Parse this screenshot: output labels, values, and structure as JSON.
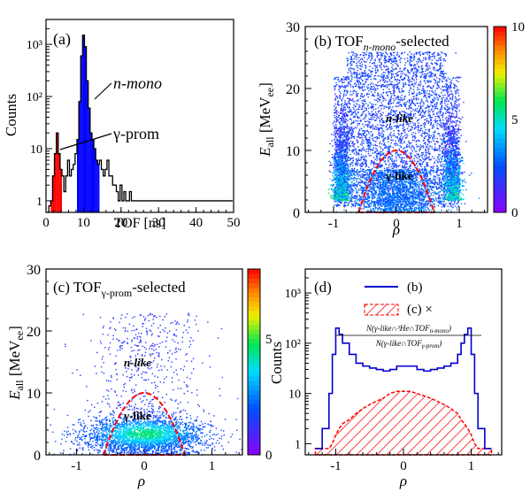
{
  "chart_data": [
    {
      "id": "a",
      "type": "histogram",
      "panel_label": "(a)",
      "xlabel": "TOF [ns]",
      "ylabel": "Counts",
      "xlim": [
        0,
        50
      ],
      "ylim": [
        0.6,
        3000
      ],
      "yscale": "log",
      "xticks": [
        "0",
        "10",
        "20",
        "30",
        "40",
        "50"
      ],
      "yticks": [
        "1",
        "10",
        "10²",
        "10³"
      ],
      "annotations": {
        "n_mono": "n-mono",
        "gamma_prom": "γ-prom"
      },
      "colors": {
        "outline": "#000000",
        "gamma_fill": "#ff0000",
        "nmono_fill": "#0000ff"
      },
      "bin_width": 0.5,
      "bins_x": [
        0.5,
        1,
        1.5,
        2,
        2.5,
        3,
        3.5,
        4,
        4.5,
        5,
        5.5,
        6,
        6.5,
        7,
        7.5,
        8,
        8.5,
        9,
        9.5,
        10,
        10.5,
        11,
        11.5,
        12,
        12.5,
        13,
        13.5,
        14,
        14.5,
        15,
        15.5,
        16,
        16.5,
        17,
        17.5,
        18,
        18.5,
        19,
        19.5,
        20,
        20.5,
        21,
        21.5,
        22,
        22.5,
        23,
        23.5,
        24,
        24.5,
        25,
        25.5,
        26,
        26.5,
        27,
        27.5,
        28,
        28.5,
        29,
        29.5,
        30,
        30.5,
        31,
        31.5,
        32,
        32.5,
        33,
        33.5,
        34,
        34.5,
        35,
        35.5,
        36,
        36.5,
        37,
        37.5,
        38,
        38.5,
        39,
        39.5,
        40,
        40.5,
        41,
        41.5,
        42,
        42.5,
        43,
        43.5,
        44,
        44.5,
        45,
        45.5,
        46,
        46.5,
        47,
        47.5,
        48,
        48.5,
        49,
        49.5
      ],
      "bins_y": [
        0.6,
        0.8,
        1,
        3,
        8,
        20,
        8,
        4,
        3,
        1.5,
        3,
        6,
        3,
        4,
        5,
        8,
        15,
        80,
        600,
        1500,
        900,
        200,
        60,
        20,
        15,
        10,
        6,
        5,
        6,
        4,
        3,
        4,
        6,
        3,
        3,
        2,
        2,
        1.5,
        1,
        2,
        1,
        1.5,
        1,
        1,
        1.5,
        1,
        1,
        1,
        1,
        1,
        1,
        1,
        1,
        1,
        1,
        1,
        1,
        1,
        1,
        1,
        1,
        1,
        1,
        1,
        1,
        1,
        1,
        1,
        1,
        1,
        1,
        1,
        1,
        1,
        1,
        1,
        1,
        1,
        1,
        1,
        1,
        1,
        1,
        1,
        1,
        1,
        1,
        1,
        1,
        1,
        1,
        1,
        1,
        1,
        1,
        1,
        1,
        1,
        1
      ],
      "gamma_range": [
        1.5,
        4
      ],
      "nmono_range": [
        8.5,
        14
      ]
    },
    {
      "id": "b",
      "type": "heatmap",
      "panel_label": "(b) TOF",
      "panel_label_sub": "n-mono",
      "panel_label_suffix": "-selected",
      "xlabel": "ρ",
      "ylabel_main": "E",
      "ylabel_sub": "all",
      "ylabel_unit": " [MeV",
      "ylabel_unit_sub": "ee",
      "ylabel_close": "]",
      "xlim": [
        -1.45,
        1.45
      ],
      "ylim": [
        0,
        30
      ],
      "xticks": [
        "-1",
        "0",
        "1"
      ],
      "yticks": [
        "0",
        "10",
        "20",
        "30"
      ],
      "colorbar_ticks": [
        "0",
        "5",
        "10"
      ],
      "colorbar_range": [
        0,
        10
      ],
      "labels": {
        "n_like": "n-like",
        "gamma_like": "γ-like"
      },
      "cut_color": "#ff0000"
    },
    {
      "id": "c",
      "type": "heatmap",
      "panel_label": "(c) TOF",
      "panel_label_sub": "γ-prom",
      "panel_label_suffix": "-selected",
      "xlabel": "ρ",
      "ylabel_main": "E",
      "ylabel_sub": "all",
      "ylabel_unit": " [MeV",
      "ylabel_unit_sub": "ee",
      "ylabel_close": "]",
      "xlim": [
        -1.45,
        1.45
      ],
      "ylim": [
        0,
        30
      ],
      "xticks": [
        "-1",
        "0",
        "1"
      ],
      "yticks": [
        "0",
        "10",
        "20",
        "30"
      ],
      "colorbar_ticks": [
        "0",
        "5"
      ],
      "colorbar_range": [
        0,
        8
      ],
      "labels": {
        "n_like": "n-like",
        "gamma_like": "γ-like"
      },
      "cut_color": "#ff0000"
    },
    {
      "id": "d",
      "type": "histogram",
      "panel_label": "(d)",
      "xlabel": "ρ",
      "ylabel": "Counts",
      "xlim": [
        -1.45,
        1.45
      ],
      "ylim": [
        0.6,
        3000
      ],
      "yscale": "log",
      "xticks": [
        "-1",
        "0",
        "1"
      ],
      "yticks": [
        "1",
        "10",
        "10²",
        "10³"
      ],
      "legend": {
        "b": "(b)",
        "c": "(c)  ×"
      },
      "fraction_num": "N(γ-like∩³He∩TOF",
      "fraction_num_sub": "n-mono",
      "fraction_den": "N(γ-like∩TOF",
      "fraction_den_sub": "γ-prom",
      "colors": {
        "b": "#0000cc",
        "c": "#ff0000"
      },
      "x": [
        -1.3,
        -1.2,
        -1.1,
        -1.05,
        -1.0,
        -0.95,
        -0.9,
        -0.8,
        -0.7,
        -0.6,
        -0.5,
        -0.4,
        -0.3,
        -0.2,
        -0.1,
        0,
        0.1,
        0.2,
        0.3,
        0.4,
        0.5,
        0.6,
        0.7,
        0.8,
        0.85,
        0.9,
        0.95,
        1.0,
        1.05,
        1.1,
        1.2,
        1.3
      ],
      "b_values": [
        0.8,
        2,
        10,
        60,
        200,
        150,
        100,
        60,
        40,
        35,
        32,
        30,
        28,
        30,
        35,
        35,
        35,
        30,
        28,
        30,
        32,
        35,
        40,
        60,
        100,
        150,
        200,
        60,
        10,
        2,
        0.8,
        0.8
      ],
      "c_values": [
        0.8,
        0.8,
        0.8,
        1,
        1.5,
        2,
        2.5,
        3,
        4,
        5,
        6,
        7,
        8,
        10,
        11,
        11,
        11,
        10,
        9,
        8,
        7,
        6,
        5,
        4,
        3,
        2.5,
        2,
        1.5,
        1,
        0.8,
        0.8,
        0.8
      ]
    }
  ]
}
